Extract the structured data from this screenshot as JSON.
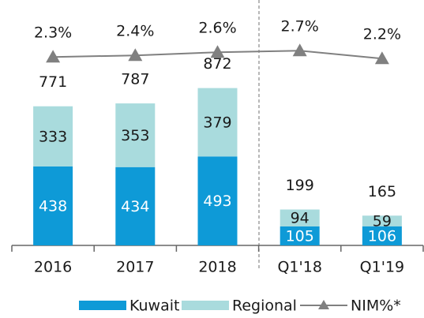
{
  "chart_data": {
    "type": "bar",
    "stacked": true,
    "categories": [
      "2016",
      "2017",
      "2018",
      "Q1'18",
      "Q1'19"
    ],
    "series": [
      {
        "name": "Kuwait",
        "type": "bar",
        "color": "#0e9ad7",
        "label_color": "#ffffff",
        "values": [
          438,
          434,
          493,
          105,
          106
        ]
      },
      {
        "name": "Regional",
        "type": "bar",
        "color": "#a9dbdd",
        "label_color": "#1a1a1a",
        "values": [
          333,
          353,
          379,
          94,
          59
        ]
      },
      {
        "name": "NIM%*",
        "type": "line",
        "axis": "y2",
        "color": "#808080",
        "values": [
          2.3,
          2.4,
          2.6,
          2.7,
          2.2
        ],
        "value_labels": [
          "2.3%",
          "2.4%",
          "2.6%",
          "2.7%",
          "2.2%"
        ]
      }
    ],
    "totals": [
      771,
      787,
      872,
      199,
      165
    ],
    "ylim": [
      0,
      1360
    ],
    "y2lim": [
      -9.6,
      5.9
    ],
    "legend": "bottom"
  }
}
